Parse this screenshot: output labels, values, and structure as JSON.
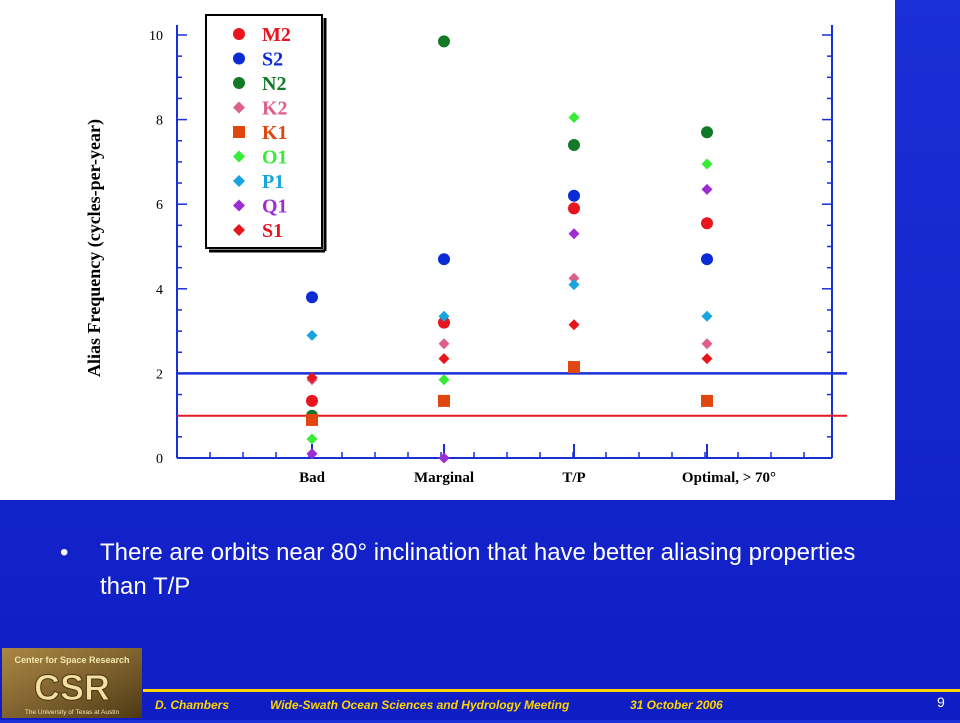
{
  "slide": {
    "bullet": "There are orbits near 80° inclination that have better aliasing properties than T/P",
    "bullet_glyph": "•",
    "page_number": "9"
  },
  "footer": {
    "author": "D. Chambers",
    "meeting": "Wide-Swath Ocean Sciences and Hydrology Meeting",
    "date": "31 October 2006"
  },
  "logo": {
    "top_text": "Center for Space Research",
    "letters": "CSR",
    "bottom_text": "The University of Texas at Austin"
  },
  "colors": {
    "background": "#1526cc",
    "accent": "#ffd400",
    "M2": "#e8141e",
    "S2": "#0a2bd6",
    "N2": "#127a26",
    "K2": "#de5f8c",
    "K1": "#e0460e",
    "O1": "#37ec37",
    "P1": "#16a5df",
    "Q1": "#9b2dd4",
    "S1": "#e6161e",
    "blue_line": "#1b2fd6",
    "red_line": "#e31b22"
  },
  "chart_data": {
    "type": "scatter",
    "ylabel": "Alias Frequency (cycles-per-year)",
    "xlabel": "",
    "title": "",
    "categories": [
      "Bad",
      "Marginal",
      "T/P",
      "Optimal, > 70°"
    ],
    "ylim": [
      0,
      10
    ],
    "yticks": [
      "0",
      "2",
      "4",
      "6",
      "8",
      "10"
    ],
    "hlines": [
      {
        "y": 2,
        "color": "blue"
      },
      {
        "y": 1,
        "color": "red"
      }
    ],
    "legend_position": "top-left",
    "series": [
      {
        "name": "M2",
        "marker": "circle",
        "values": [
          1.35,
          3.2,
          5.9,
          5.55
        ]
      },
      {
        "name": "S2",
        "marker": "circle",
        "values": [
          3.8,
          4.7,
          6.2,
          4.7
        ]
      },
      {
        "name": "N2",
        "marker": "circle",
        "values": [
          1.0,
          9.85,
          7.4,
          7.7
        ]
      },
      {
        "name": "K2",
        "marker": "diamond",
        "values": [
          1.85,
          2.7,
          4.25,
          2.7
        ]
      },
      {
        "name": "K1",
        "marker": "square",
        "values": [
          0.9,
          1.35,
          2.15,
          1.35
        ]
      },
      {
        "name": "O1",
        "marker": "diamond",
        "values": [
          0.45,
          1.85,
          8.05,
          6.95
        ]
      },
      {
        "name": "P1",
        "marker": "diamond",
        "values": [
          2.9,
          3.35,
          4.1,
          3.35
        ]
      },
      {
        "name": "Q1",
        "marker": "diamond",
        "values": [
          0.1,
          0.0,
          5.3,
          6.35
        ]
      },
      {
        "name": "S1",
        "marker": "diamond",
        "values": [
          1.9,
          2.35,
          3.15,
          2.35
        ]
      }
    ]
  }
}
